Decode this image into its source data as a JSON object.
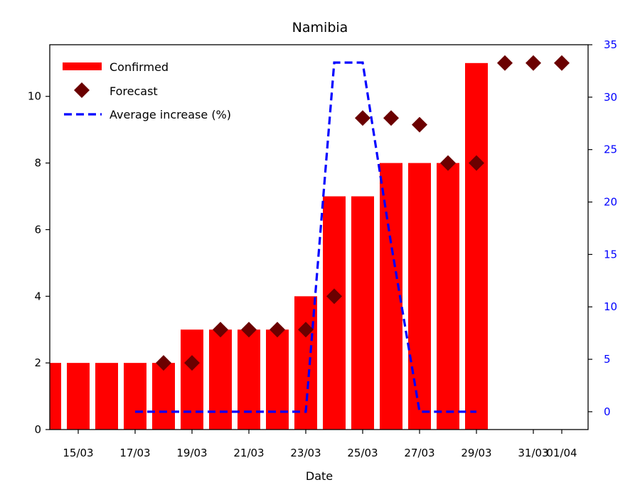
{
  "chart_data": {
    "type": "bar",
    "title": "Namibia",
    "xlabel": "Date",
    "ylabel": "",
    "y2label": "",
    "grid": false,
    "legend_position": "top-left",
    "dates": [
      "14/03",
      "15/03",
      "16/03",
      "17/03",
      "18/03",
      "19/03",
      "20/03",
      "21/03",
      "22/03",
      "23/03",
      "24/03",
      "25/03",
      "26/03",
      "27/03",
      "28/03",
      "29/03",
      "30/03",
      "31/03",
      "01/04"
    ],
    "x_ticks": [
      "15/03",
      "17/03",
      "19/03",
      "21/03",
      "23/03",
      "25/03",
      "27/03",
      "29/03",
      "31/03",
      "01/04"
    ],
    "ylim": [
      0,
      11.55
    ],
    "y_ticks": [
      0,
      2,
      4,
      6,
      8,
      10
    ],
    "y2lim": [
      -1.7,
      35
    ],
    "y2_ticks": [
      0,
      5,
      10,
      15,
      20,
      25,
      30,
      35
    ],
    "series": [
      {
        "name": "Confirmed",
        "kind": "bar",
        "color": "#ff0000",
        "x": [
          "14/03",
          "15/03",
          "16/03",
          "17/03",
          "18/03",
          "19/03",
          "20/03",
          "21/03",
          "22/03",
          "23/03",
          "24/03",
          "25/03",
          "26/03",
          "27/03",
          "28/03",
          "29/03"
        ],
        "values": [
          2,
          2,
          2,
          2,
          2,
          3,
          3,
          3,
          3,
          4,
          7,
          7,
          8,
          8,
          8,
          11
        ]
      },
      {
        "name": "Forecast",
        "kind": "scatter",
        "marker": "diamond",
        "color": "#6b0000",
        "x": [
          "18/03",
          "19/03",
          "20/03",
          "21/03",
          "22/03",
          "23/03",
          "24/03",
          "25/03",
          "26/03",
          "27/03",
          "28/03",
          "29/03",
          "30/03",
          "31/03",
          "01/04"
        ],
        "values": [
          2,
          2,
          3,
          3,
          3,
          3,
          4,
          9.35,
          9.35,
          9.15,
          8,
          8,
          11,
          11,
          11
        ]
      },
      {
        "name": "Average increase (%)",
        "kind": "line",
        "style": "dashed",
        "color": "#0000ff",
        "axis": "right",
        "x": [
          "17/03",
          "18/03",
          "19/03",
          "20/03",
          "21/03",
          "22/03",
          "23/03",
          "24/03",
          "25/03",
          "26/03",
          "27/03",
          "28/03",
          "29/03"
        ],
        "values": [
          0,
          0,
          0,
          0,
          0,
          0,
          0,
          33.3,
          33.3,
          16,
          0,
          0,
          0
        ]
      }
    ]
  }
}
